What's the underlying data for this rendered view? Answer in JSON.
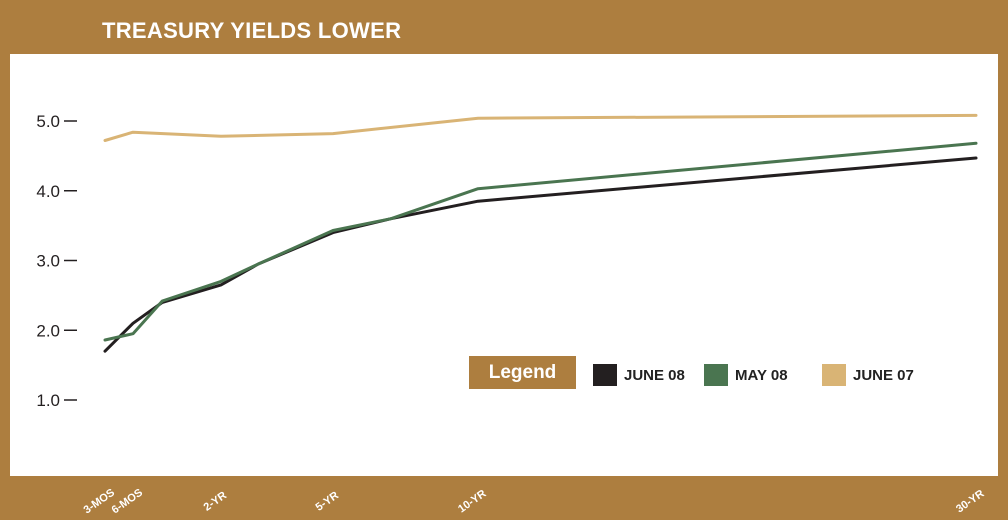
{
  "colors": {
    "frame": "#ad7e3f",
    "june08": "#231f20",
    "may08": "#4a7550",
    "june07": "#d9b475"
  },
  "chart_data": {
    "type": "line",
    "title": "TREASURY YIELDS LOWER",
    "categories": [
      "3-MOS",
      "6-MOS",
      "2-YR",
      "5-YR",
      "10-YR",
      "30-YR"
    ],
    "x_years": [
      0.25,
      0.5,
      2,
      5,
      10,
      30
    ],
    "ylim": [
      0,
      5.5
    ],
    "yticks": [
      "1.0",
      "2.0",
      "3.0",
      "4.0",
      "5.0"
    ],
    "legend_title": "Legend",
    "legend_position": "bottom-right",
    "series": [
      {
        "name": "JUNE 08",
        "color": "#231f20",
        "x": [
          0.25,
          0.5,
          1,
          2,
          3,
          5,
          7,
          10,
          30
        ],
        "y": [
          1.7,
          2.1,
          2.4,
          2.65,
          2.95,
          3.4,
          3.6,
          3.85,
          4.47
        ]
      },
      {
        "name": "MAY 08",
        "color": "#4a7550",
        "x": [
          0.25,
          0.5,
          1,
          2,
          3,
          5,
          7,
          10,
          30
        ],
        "y": [
          1.86,
          1.95,
          2.42,
          2.7,
          2.95,
          3.43,
          3.6,
          4.03,
          4.68
        ]
      },
      {
        "name": "JUNE 07",
        "color": "#d9b475",
        "x": [
          0.25,
          0.5,
          2,
          5,
          10,
          30
        ],
        "y": [
          4.72,
          4.84,
          4.78,
          4.82,
          5.04,
          5.08
        ]
      }
    ]
  }
}
